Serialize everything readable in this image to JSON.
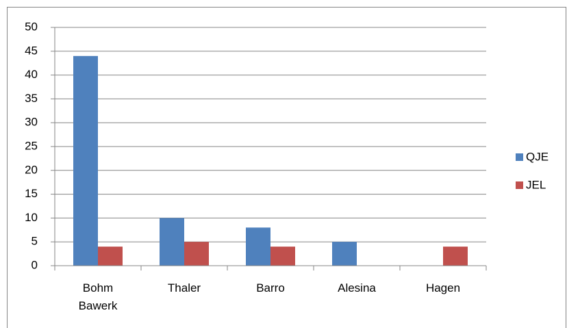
{
  "chart_data": {
    "type": "bar",
    "categories": [
      "Bohm Bawerk",
      "Thaler",
      "Barro",
      "Alesina",
      "Hagen"
    ],
    "series": [
      {
        "name": "QJE",
        "color": "#4f81bd",
        "values": [
          44,
          10,
          8,
          5,
          0
        ]
      },
      {
        "name": "JEL",
        "color": "#c0504d",
        "values": [
          4,
          5,
          4,
          0,
          4
        ]
      }
    ],
    "ylim": [
      0,
      50
    ],
    "yticks": [
      0,
      5,
      10,
      15,
      20,
      25,
      30,
      35,
      40,
      45,
      50
    ],
    "grid": true,
    "legend": "right"
  }
}
